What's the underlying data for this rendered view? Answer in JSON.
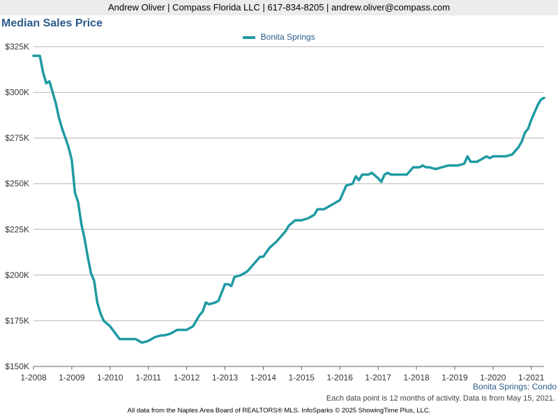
{
  "header": {
    "contact": "Andrew Oliver | Compass Florida LLC | 617-834-8205 | andrew.oliver@compass.com"
  },
  "chart_title": "Median Sales Price",
  "legend_label": "Bonita Springs",
  "subtitle_right": "Bonita Springs: Condo",
  "note": "Each data point is 12 months of activity. Data is from May 15, 2021.",
  "footer": "All data from the Naples Area Board of REALTORS® MLS. InfoSparks © 2025 ShowingTime Plus, LLC.",
  "colors": {
    "series": "#1f9aa3",
    "grid": "#b4b4b4",
    "title": "#2a5a8a"
  },
  "chart_data": {
    "type": "line",
    "title": "Median Sales Price",
    "xlabel": "",
    "ylabel": "",
    "ylim": [
      150000,
      325000
    ],
    "xlim": [
      "2008-01",
      "2021-05"
    ],
    "y_ticks": [
      150000,
      175000,
      200000,
      225000,
      250000,
      275000,
      300000,
      325000
    ],
    "y_tick_labels": [
      "$150K",
      "$175K",
      "$200K",
      "$225K",
      "$250K",
      "$275K",
      "$300K",
      "$325K"
    ],
    "x_ticks": [
      "2008-01",
      "2009-01",
      "2010-01",
      "2011-01",
      "2012-01",
      "2013-01",
      "2014-01",
      "2015-01",
      "2016-01",
      "2017-01",
      "2018-01",
      "2019-01",
      "2020-01",
      "2021-01"
    ],
    "x_tick_labels": [
      "1-2008",
      "1-2009",
      "1-2010",
      "1-2011",
      "1-2012",
      "1-2013",
      "1-2014",
      "1-2015",
      "1-2016",
      "1-2017",
      "1-2018",
      "1-2019",
      "1-2020",
      "1-2021"
    ],
    "grid": true,
    "legend_position": "top-center",
    "series": [
      {
        "name": "Bonita Springs",
        "x": [
          "2008-01",
          "2008-03",
          "2008-04",
          "2008-05",
          "2008-06",
          "2008-07",
          "2008-08",
          "2008-09",
          "2008-10",
          "2008-11",
          "2008-12",
          "2009-01",
          "2009-02",
          "2009-03",
          "2009-04",
          "2009-05",
          "2009-06",
          "2009-07",
          "2009-08",
          "2009-09",
          "2009-10",
          "2009-11",
          "2010-01",
          "2010-04",
          "2010-05",
          "2010-07",
          "2010-09",
          "2010-10",
          "2010-11",
          "2011-01",
          "2011-02",
          "2011-03",
          "2011-05",
          "2011-06",
          "2011-08",
          "2011-10",
          "2012-01",
          "2012-02",
          "2012-03",
          "2012-05",
          "2012-06",
          "2012-07",
          "2012-08",
          "2012-10",
          "2012-11",
          "2013-01",
          "2013-02",
          "2013-03",
          "2013-04",
          "2013-06",
          "2013-08",
          "2013-09",
          "2013-10",
          "2013-12",
          "2014-01",
          "2014-03",
          "2014-05",
          "2014-06",
          "2014-08",
          "2014-09",
          "2014-11",
          "2015-01",
          "2015-03",
          "2015-05",
          "2015-06",
          "2015-08",
          "2015-09",
          "2015-11",
          "2016-01",
          "2016-02",
          "2016-03",
          "2016-05",
          "2016-06",
          "2016-07",
          "2016-08",
          "2016-10",
          "2016-11",
          "2017-01",
          "2017-02",
          "2017-03",
          "2017-04",
          "2017-05",
          "2017-07",
          "2017-10",
          "2017-12",
          "2018-02",
          "2018-03",
          "2018-04",
          "2018-05",
          "2018-07",
          "2018-09",
          "2018-11",
          "2019-01",
          "2019-02",
          "2019-04",
          "2019-05",
          "2019-06",
          "2019-08",
          "2019-10",
          "2019-11",
          "2019-12",
          "2020-01",
          "2020-03",
          "2020-05",
          "2020-07",
          "2020-09",
          "2020-10",
          "2020-11",
          "2020-12",
          "2021-01",
          "2021-02",
          "2021-03",
          "2021-04",
          "2021-05"
        ],
        "values": [
          320000,
          320000,
          311000,
          305000,
          306000,
          300000,
          294000,
          286000,
          280000,
          275000,
          270000,
          263000,
          245000,
          240000,
          228000,
          220000,
          210000,
          201000,
          197000,
          185000,
          179000,
          175000,
          172000,
          165000,
          165000,
          165000,
          165000,
          164000,
          163000,
          164000,
          165000,
          166000,
          167000,
          167000,
          168000,
          170000,
          170000,
          171000,
          172000,
          178000,
          180000,
          185000,
          184000,
          185000,
          186000,
          195000,
          195000,
          194000,
          199000,
          200000,
          202000,
          204000,
          206000,
          210000,
          210000,
          215000,
          218000,
          220000,
          224000,
          227000,
          230000,
          230000,
          231000,
          233000,
          236000,
          236000,
          237000,
          239000,
          241000,
          245000,
          249000,
          250000,
          254000,
          252000,
          255000,
          255000,
          256000,
          253000,
          251000,
          255000,
          256000,
          255000,
          255000,
          255000,
          259000,
          259000,
          260000,
          259000,
          259000,
          258000,
          259000,
          260000,
          260000,
          260000,
          261000,
          265000,
          262000,
          262000,
          264000,
          265000,
          264000,
          265000,
          265000,
          265000,
          266000,
          270000,
          273000,
          278000,
          280000,
          285000,
          289000,
          293000,
          296000,
          297000
        ]
      }
    ]
  }
}
